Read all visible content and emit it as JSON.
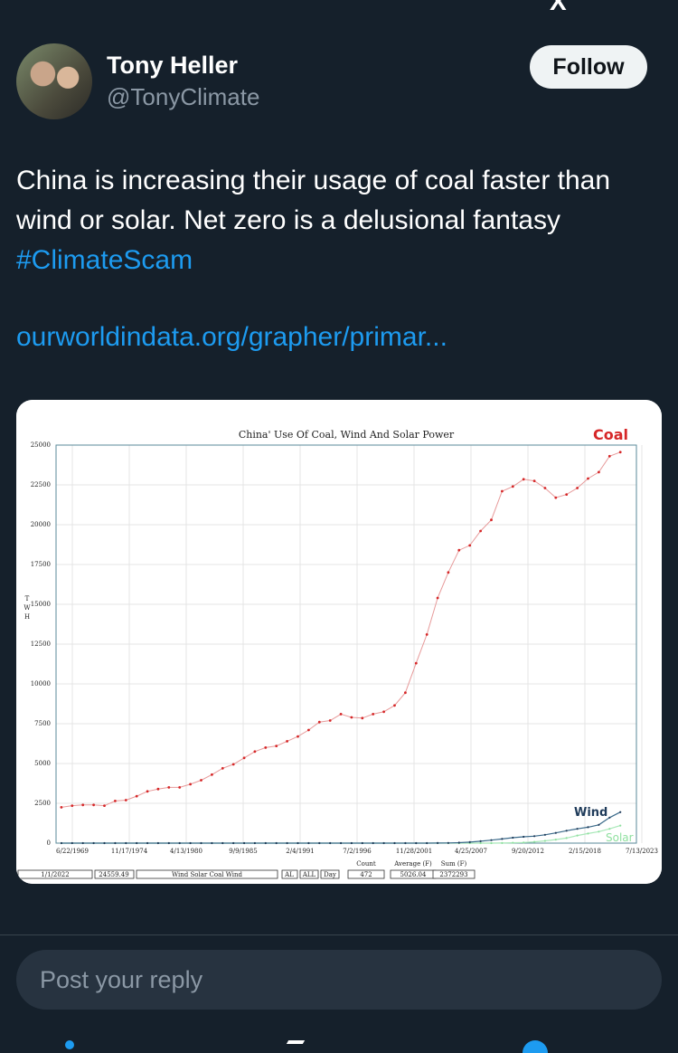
{
  "author": {
    "name": "Tony Heller",
    "handle": "@TonyClimate",
    "follow_label": "Follow"
  },
  "tweet": {
    "line1": "China is increasing their usage of coal faster than",
    "line2": "wind or solar.  Net zero is a delusional fantasy",
    "hashtag": "#ClimateScam",
    "link": "ourworldindata.org/grapher/primar..."
  },
  "reply": {
    "placeholder": "Post your reply"
  },
  "icons": {
    "avatar": "profile-photo",
    "bottom": [
      "profile-icon",
      "compose-icon",
      "notifications-icon"
    ]
  },
  "colors": {
    "background": "#15202b",
    "link": "#1d9bf0",
    "coal": "#d62728",
    "wind": "#1f3b5a",
    "solar": "#90e0a0"
  },
  "chart_data": {
    "type": "line",
    "title": "China' Use Of Coal, Wind And Solar Power",
    "ylabel": "T W H",
    "ylim": [
      0,
      25000
    ],
    "yticks": [
      0,
      2500,
      5000,
      7500,
      10000,
      12500,
      15000,
      17500,
      20000,
      22500,
      25000
    ],
    "xticks": [
      "6/22/1969",
      "11/17/1974",
      "4/13/1980",
      "9/9/1985",
      "2/4/1991",
      "7/2/1996",
      "11/28/2001",
      "4/25/2007",
      "9/20/2012",
      "2/15/2018",
      "7/13/2023"
    ],
    "xlim": [
      1969.5,
      2023.5
    ],
    "x": [
      1970,
      1971,
      1972,
      1973,
      1974,
      1975,
      1976,
      1977,
      1978,
      1979,
      1980,
      1981,
      1982,
      1983,
      1984,
      1985,
      1986,
      1987,
      1988,
      1989,
      1990,
      1991,
      1992,
      1993,
      1994,
      1995,
      1996,
      1997,
      1998,
      1999,
      2000,
      2001,
      2002,
      2003,
      2004,
      2005,
      2006,
      2007,
      2008,
      2009,
      2010,
      2011,
      2012,
      2013,
      2014,
      2015,
      2016,
      2017,
      2018,
      2019,
      2020,
      2021,
      2022
    ],
    "series": [
      {
        "name": "Coal",
        "values": [
          2250,
          2350,
          2400,
          2400,
          2350,
          2650,
          2700,
          2950,
          3250,
          3400,
          3500,
          3500,
          3700,
          3950,
          4300,
          4700,
          4950,
          5350,
          5750,
          6000,
          6100,
          6400,
          6700,
          7100,
          7600,
          7700,
          8100,
          7900,
          7850,
          8100,
          8250,
          8650,
          9450,
          11300,
          13100,
          15400,
          17000,
          18400,
          18700,
          19600,
          20300,
          22100,
          22400,
          22850,
          22750,
          22300,
          21700,
          21900,
          22300,
          22900,
          23300,
          24300,
          24559
        ]
      },
      {
        "name": "Wind",
        "values": [
          0,
          0,
          0,
          0,
          0,
          0,
          0,
          0,
          0,
          0,
          0,
          0,
          0,
          0,
          0,
          0,
          0,
          0,
          0,
          0,
          0,
          0,
          0,
          0,
          0,
          0,
          0,
          0,
          0,
          0,
          0,
          0,
          0,
          0,
          0,
          5,
          10,
          30,
          60,
          120,
          190,
          260,
          340,
          400,
          440,
          520,
          640,
          780,
          900,
          1000,
          1150,
          1600,
          1950
        ]
      },
      {
        "name": "Solar",
        "values": [
          0,
          0,
          0,
          0,
          0,
          0,
          0,
          0,
          0,
          0,
          0,
          0,
          0,
          0,
          0,
          0,
          0,
          0,
          0,
          0,
          0,
          0,
          0,
          0,
          0,
          0,
          0,
          0,
          0,
          0,
          0,
          0,
          0,
          0,
          0,
          0,
          0,
          0,
          0,
          0,
          2,
          8,
          20,
          40,
          80,
          140,
          220,
          320,
          480,
          600,
          720,
          900,
          1100
        ]
      }
    ],
    "footer": {
      "date_field": "1/1/2022",
      "value_field": "24559.49",
      "series_field": "Wind Solar Coal Wind",
      "btn_al": "AL",
      "btn_all": "ALL",
      "btn_day": "Day",
      "count_label": "Count",
      "count_value": "472",
      "avg_label": "Average (F)",
      "avg_value": "5026.04",
      "sum_label": "Sum (F)",
      "sum_value": "2372293"
    },
    "grid": true,
    "legend": "inline-labels-right"
  }
}
